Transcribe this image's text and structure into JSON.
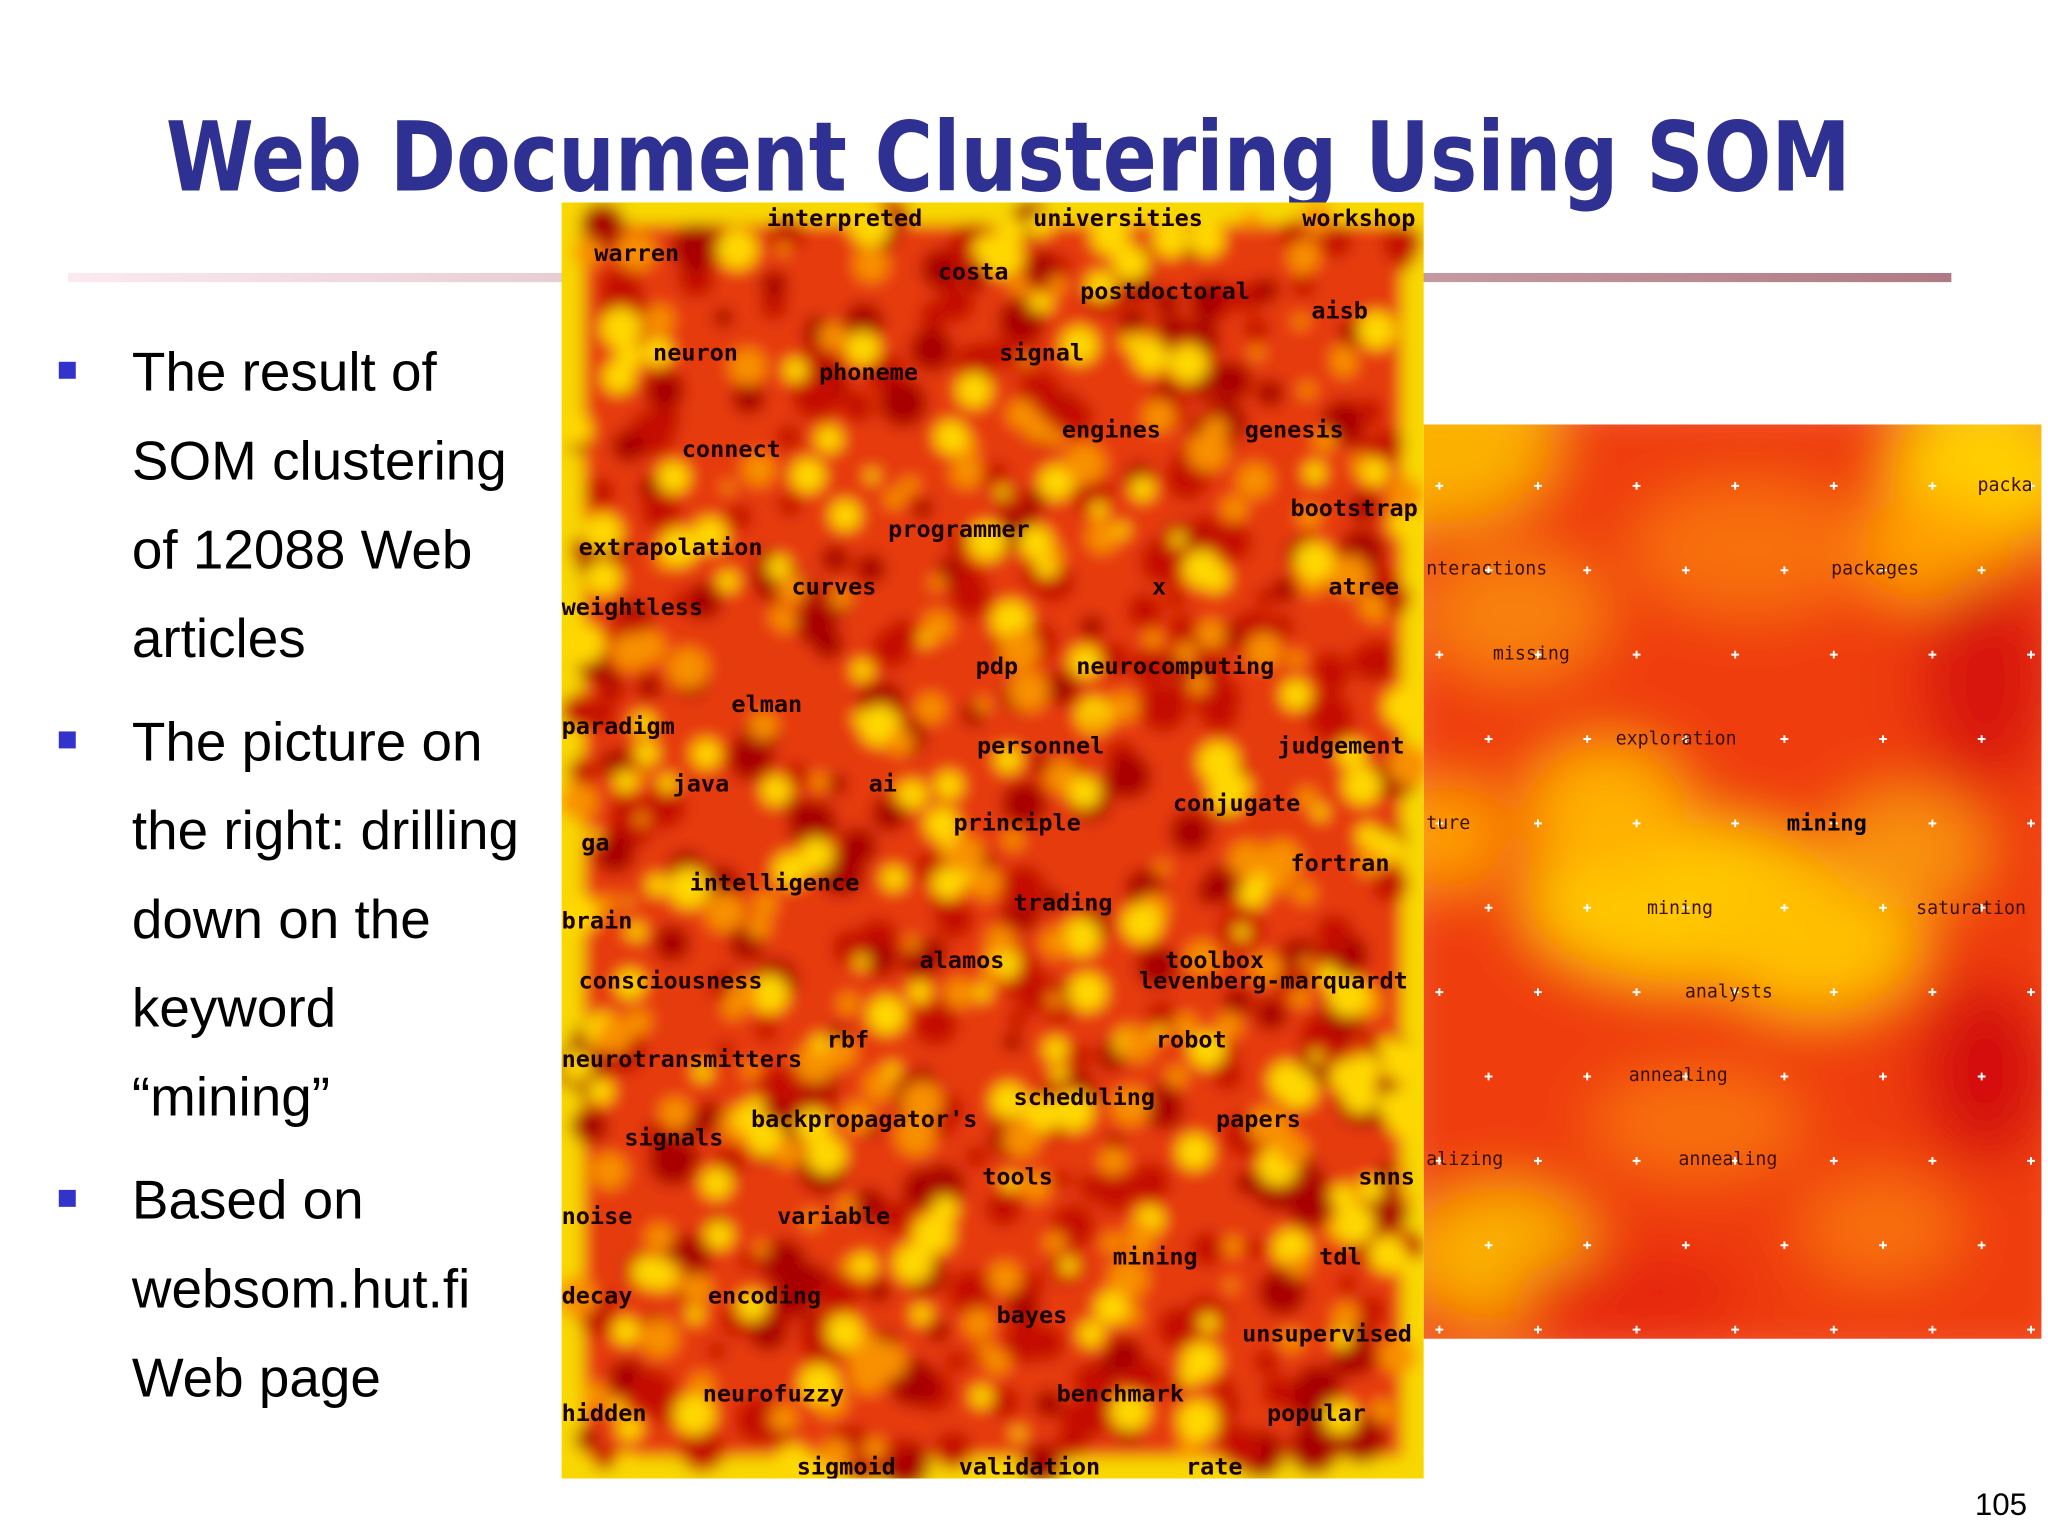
{
  "title": "Web Document Clustering Using SOM",
  "bullets": [
    {
      "lines": [
        "The result of",
        "SOM clustering",
        "of 12088 Web",
        "articles"
      ]
    },
    {
      "lines": [
        "The picture on",
        "the right: drilling",
        "down on the",
        "keyword",
        "“mining”"
      ]
    },
    {
      "lines": [
        "Based on",
        "websom.hut.fi",
        "Web page"
      ]
    }
  ],
  "figure_left": {
    "labels": [
      "interpreted",
      "universities",
      "workshop",
      "warren",
      "costa",
      "postdoctoral",
      "aisb",
      "neuron",
      "signal",
      "phoneme",
      "engines",
      "genesis",
      "connect",
      "bootstrap",
      "programmer",
      "extrapolation",
      "curves",
      "x",
      "atree",
      "weightless",
      "pdp",
      "neurocomputing",
      "elman",
      "paradigm",
      "personnel",
      "judgement",
      "java",
      "ai",
      "conjugate",
      "principle",
      "ga",
      "fortran",
      "intelligence",
      "trading",
      "brain",
      "alamos",
      "toolbox",
      "levenberg-marquardt",
      "consciousness",
      "rbf",
      "robot",
      "neurotransmitters",
      "scheduling",
      "backpropagator's",
      "papers",
      "signals",
      "tools",
      "snns",
      "noise",
      "variable",
      "mining",
      "tdl",
      "decay",
      "encoding",
      "bayes",
      "unsupervised",
      "neurofuzzy",
      "benchmark",
      "popular",
      "hidden",
      "sigmoid",
      "validation",
      "rate"
    ]
  },
  "figure_right": {
    "labels": [
      "packa",
      "nteractions",
      "packages",
      "missing",
      "exploration",
      "ture",
      "mining",
      "mining",
      "saturation",
      "analysts",
      "annealing",
      "alizing",
      "annealing"
    ]
  },
  "page_number": "105"
}
